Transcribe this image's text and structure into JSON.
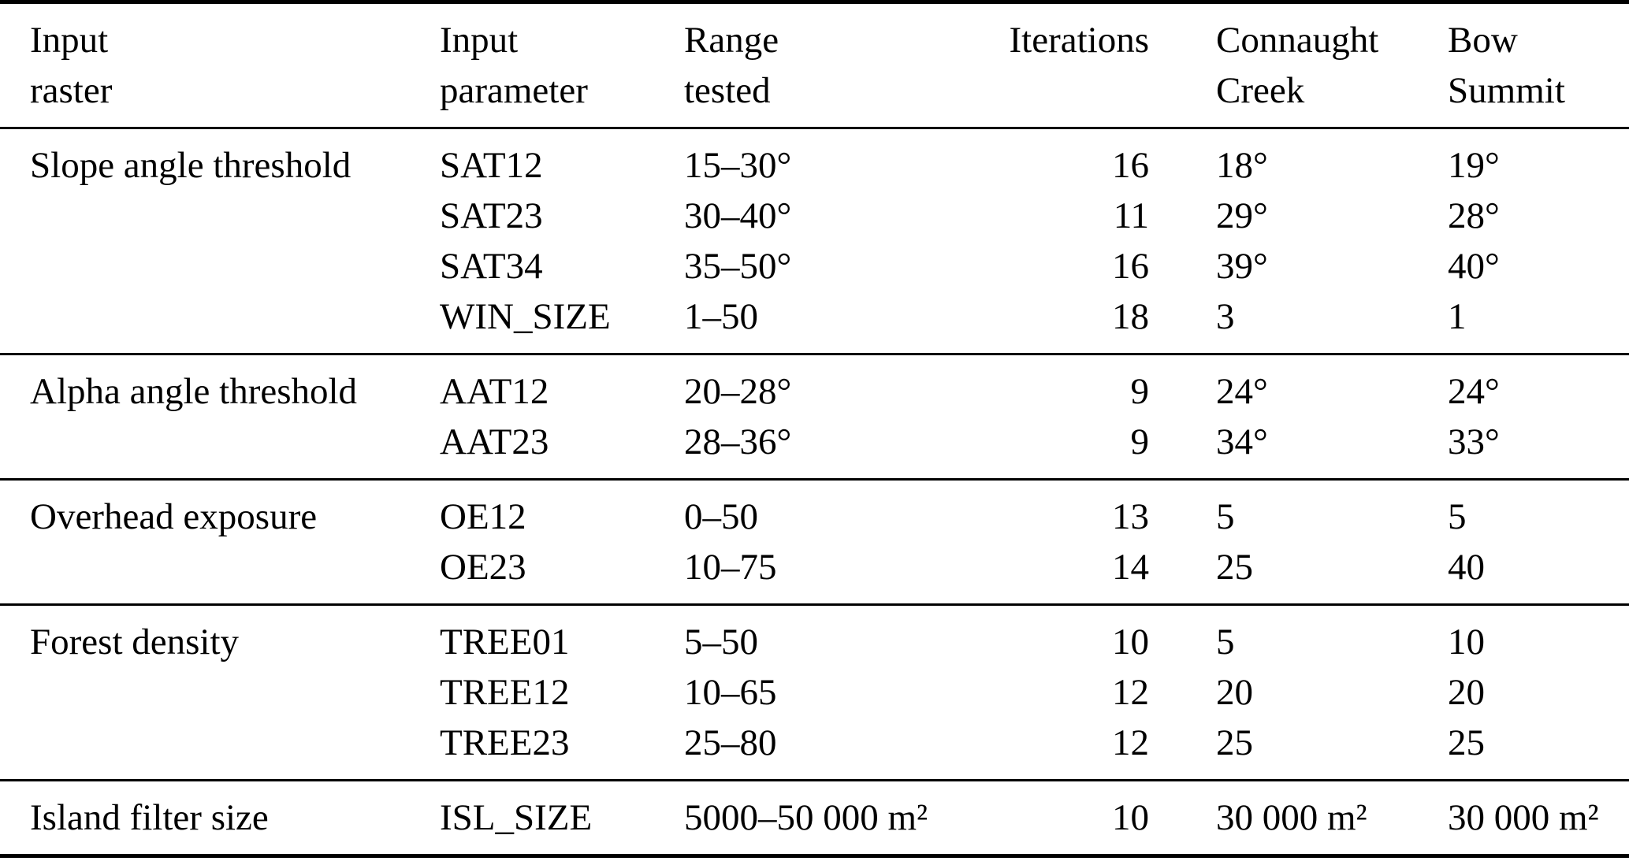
{
  "table": {
    "headers": {
      "input_raster": "Input\nraster",
      "input_parameter": "Input\nparameter",
      "range_tested": "Range\ntested",
      "iterations": "Iterations",
      "connaught_creek": "Connaught\nCreek",
      "bow_summit": "Bow\nSummit"
    },
    "sections": [
      {
        "raster": "Slope angle threshold",
        "rows": [
          {
            "param": "SAT12",
            "range": "15–30°",
            "iter": "16",
            "connaught": "18°",
            "bow": "19°"
          },
          {
            "param": "SAT23",
            "range": "30–40°",
            "iter": "11",
            "connaught": "29°",
            "bow": "28°"
          },
          {
            "param": "SAT34",
            "range": "35–50°",
            "iter": "16",
            "connaught": "39°",
            "bow": "40°"
          },
          {
            "param": "WIN_SIZE",
            "range": "1–50",
            "iter": "18",
            "connaught": "3",
            "bow": "1"
          }
        ]
      },
      {
        "raster": "Alpha angle threshold",
        "rows": [
          {
            "param": "AAT12",
            "range": "20–28°",
            "iter": "9",
            "connaught": "24°",
            "bow": "24°"
          },
          {
            "param": "AAT23",
            "range": "28–36°",
            "iter": "9",
            "connaught": "34°",
            "bow": "33°"
          }
        ]
      },
      {
        "raster": "Overhead exposure",
        "rows": [
          {
            "param": "OE12",
            "range": "0–50",
            "iter": "13",
            "connaught": "5",
            "bow": "5"
          },
          {
            "param": "OE23",
            "range": "10–75",
            "iter": "14",
            "connaught": "25",
            "bow": "40"
          }
        ]
      },
      {
        "raster": "Forest density",
        "rows": [
          {
            "param": "TREE01",
            "range": "5–50",
            "iter": "10",
            "connaught": "5",
            "bow": "10"
          },
          {
            "param": "TREE12",
            "range": "10–65",
            "iter": "12",
            "connaught": "20",
            "bow": "20"
          },
          {
            "param": "TREE23",
            "range": "25–80",
            "iter": "12",
            "connaught": "25",
            "bow": "25"
          }
        ]
      },
      {
        "raster": "Island filter size",
        "rows": [
          {
            "param": "ISL_SIZE",
            "range": "5000–50 000 m²",
            "iter": "10",
            "connaught": "30 000 m²",
            "bow": "30 000 m²"
          }
        ]
      }
    ],
    "colors": {
      "text": "#000000",
      "background": "#ffffff",
      "rule": "#000000"
    }
  }
}
